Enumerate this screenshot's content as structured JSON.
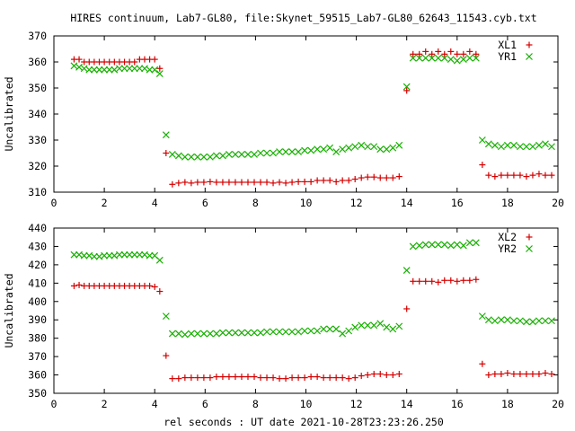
{
  "chart_data": {
    "title": "HIRES continuum, Lab7-GL80, file:Skynet_59515_Lab7-GL80_62643_11543.cyb.txt",
    "xlabel": "rel seconds : UT date 2021-10-28T23:23:26.250",
    "colors": {
      "red": "#d40000",
      "green": "#17b000"
    },
    "panels": [
      {
        "type": "scatter",
        "ylabel": "Uncalibrated",
        "xlim": [
          0,
          20
        ],
        "ylim": [
          310,
          370
        ],
        "xticks": [
          "0",
          "2",
          "4",
          "6",
          "8",
          "10",
          "12",
          "14",
          "16",
          "18",
          "20"
        ],
        "yticks": [
          "310",
          "320",
          "330",
          "340",
          "350",
          "360",
          "370"
        ],
        "legend_position": "top-right",
        "series": [
          {
            "name": "XL1",
            "marker": "plus",
            "color": "#d40000",
            "x": [
              0.8,
              1.0,
              1.2,
              1.4,
              1.6,
              1.8,
              2.0,
              2.2,
              2.4,
              2.6,
              2.8,
              3.0,
              3.2,
              3.4,
              3.6,
              3.8,
              4.0,
              4.2,
              4.45,
              4.7,
              4.95,
              5.2,
              5.45,
              5.7,
              5.95,
              6.2,
              6.45,
              6.7,
              6.95,
              7.2,
              7.45,
              7.7,
              7.95,
              8.2,
              8.45,
              8.7,
              8.95,
              9.2,
              9.45,
              9.7,
              9.95,
              10.2,
              10.45,
              10.7,
              10.95,
              11.2,
              11.45,
              11.7,
              11.95,
              12.2,
              12.45,
              12.7,
              12.95,
              13.2,
              13.45,
              13.7,
              14.0,
              14.25,
              14.5,
              14.75,
              15.0,
              15.25,
              15.5,
              15.75,
              16.0,
              16.25,
              16.5,
              16.75,
              17.0,
              17.25,
              17.5,
              17.75,
              18.0,
              18.25,
              18.5,
              18.75,
              19.0,
              19.25,
              19.5,
              19.75
            ],
            "y": [
              361,
              361,
              360,
              360,
              360,
              360,
              360,
              360,
              360,
              360,
              360,
              360,
              360,
              361,
              361,
              361,
              361,
              357.5,
              325,
              313,
              313.5,
              313.8,
              313.5,
              313.8,
              313.8,
              314,
              313.8,
              313.8,
              313.8,
              313.8,
              313.8,
              313.8,
              313.8,
              313.8,
              313.8,
              313.5,
              313.8,
              313.5,
              313.8,
              314,
              314,
              314,
              314.5,
              314.5,
              314.5,
              314,
              314.5,
              314.5,
              315,
              315.5,
              315.8,
              315.8,
              315.5,
              315.5,
              315.5,
              316,
              349,
              363,
              363,
              364,
              363,
              364,
              363,
              364,
              363,
              363,
              364,
              363,
              320.5,
              316.5,
              316,
              316.5,
              316.5,
              316.5,
              316.5,
              316,
              316.5,
              317,
              316.5,
              316.5
            ]
          },
          {
            "name": "YR1",
            "marker": "cross",
            "color": "#17b000",
            "x": [
              0.8,
              1.0,
              1.2,
              1.4,
              1.6,
              1.8,
              2.0,
              2.2,
              2.4,
              2.6,
              2.8,
              3.0,
              3.2,
              3.4,
              3.6,
              3.8,
              4.0,
              4.2,
              4.45,
              4.7,
              4.95,
              5.2,
              5.45,
              5.7,
              5.95,
              6.2,
              6.45,
              6.7,
              6.95,
              7.2,
              7.45,
              7.7,
              7.95,
              8.2,
              8.45,
              8.7,
              8.95,
              9.2,
              9.45,
              9.7,
              9.95,
              10.2,
              10.45,
              10.7,
              10.95,
              11.2,
              11.45,
              11.7,
              11.95,
              12.2,
              12.45,
              12.7,
              12.95,
              13.2,
              13.45,
              13.7,
              14.0,
              14.25,
              14.5,
              14.75,
              15.0,
              15.25,
              15.5,
              15.75,
              16.0,
              16.25,
              16.5,
              16.75,
              17.0,
              17.25,
              17.5,
              17.75,
              18.0,
              18.25,
              18.5,
              18.75,
              19.0,
              19.25,
              19.5,
              19.75
            ],
            "y": [
              358.5,
              358,
              357.5,
              357,
              357,
              357,
              357,
              357,
              357,
              357.5,
              357.5,
              357.5,
              357.5,
              357.5,
              357.5,
              357,
              357,
              355.5,
              332,
              324.5,
              324,
              323.5,
              323.5,
              323.5,
              323.5,
              323.5,
              324,
              324,
              324.5,
              324.5,
              324.5,
              324.5,
              324.5,
              325,
              325,
              325,
              325.5,
              325.5,
              325.5,
              325.5,
              326,
              326,
              326.5,
              326.5,
              327,
              325.5,
              326.5,
              327,
              327.5,
              328,
              327.5,
              327.5,
              326.5,
              326.5,
              327,
              328,
              350.5,
              361.5,
              361.5,
              361.5,
              361.5,
              361.5,
              361.5,
              361,
              360.5,
              361,
              361.5,
              361.5,
              330,
              328.5,
              328,
              327.5,
              328,
              328,
              327.5,
              327.5,
              327.5,
              328,
              328.5,
              327.5
            ]
          }
        ]
      },
      {
        "type": "scatter",
        "ylabel": "Uncalibrated",
        "xlim": [
          0,
          20
        ],
        "ylim": [
          350,
          440
        ],
        "xticks": [
          "0",
          "2",
          "4",
          "6",
          "8",
          "10",
          "12",
          "14",
          "16",
          "18",
          "20"
        ],
        "yticks": [
          "350",
          "360",
          "370",
          "380",
          "390",
          "400",
          "410",
          "420",
          "430",
          "440"
        ],
        "legend_position": "top-right",
        "series": [
          {
            "name": "XL2",
            "marker": "plus",
            "color": "#d40000",
            "x": [
              0.8,
              1.0,
              1.2,
              1.4,
              1.6,
              1.8,
              2.0,
              2.2,
              2.4,
              2.6,
              2.8,
              3.0,
              3.2,
              3.4,
              3.6,
              3.8,
              4.0,
              4.2,
              4.45,
              4.7,
              4.95,
              5.2,
              5.45,
              5.7,
              5.95,
              6.2,
              6.45,
              6.7,
              6.95,
              7.2,
              7.45,
              7.7,
              7.95,
              8.2,
              8.45,
              8.7,
              8.95,
              9.2,
              9.45,
              9.7,
              9.95,
              10.2,
              10.45,
              10.7,
              10.95,
              11.2,
              11.45,
              11.7,
              11.95,
              12.2,
              12.45,
              12.7,
              12.95,
              13.2,
              13.45,
              13.7,
              14.0,
              14.25,
              14.5,
              14.75,
              15.0,
              15.25,
              15.5,
              15.75,
              16.0,
              16.25,
              16.5,
              16.75,
              17.0,
              17.25,
              17.5,
              17.75,
              18.0,
              18.25,
              18.5,
              18.75,
              19.0,
              19.25,
              19.5,
              19.75
            ],
            "y": [
              408.5,
              409,
              408.5,
              408.5,
              408.5,
              408.5,
              408.5,
              408.5,
              408.5,
              408.5,
              408.5,
              408.5,
              408.5,
              408.5,
              408.5,
              408.5,
              408,
              405.5,
              370.5,
              358,
              358,
              358.5,
              358.5,
              358.5,
              358.5,
              358.5,
              359,
              359,
              359,
              359,
              359,
              359,
              359,
              358.5,
              358.5,
              358.5,
              358,
              358,
              358.5,
              358.5,
              358.5,
              359,
              359,
              358.5,
              358.5,
              358.5,
              358.5,
              358,
              358.5,
              359.5,
              360,
              360.5,
              360.5,
              360,
              360,
              360.5,
              396,
              411,
              411,
              411,
              411,
              410.5,
              411.5,
              411.5,
              411,
              411.5,
              411.5,
              412,
              366,
              360,
              360.5,
              360.5,
              361,
              360.5,
              360.5,
              360.5,
              360.5,
              360.5,
              361,
              360.5
            ]
          },
          {
            "name": "YR2",
            "marker": "cross",
            "color": "#17b000",
            "x": [
              0.8,
              1.0,
              1.2,
              1.4,
              1.6,
              1.8,
              2.0,
              2.2,
              2.4,
              2.6,
              2.8,
              3.0,
              3.2,
              3.4,
              3.6,
              3.8,
              4.0,
              4.2,
              4.45,
              4.7,
              4.95,
              5.2,
              5.45,
              5.7,
              5.95,
              6.2,
              6.45,
              6.7,
              6.95,
              7.2,
              7.45,
              7.7,
              7.95,
              8.2,
              8.45,
              8.7,
              8.95,
              9.2,
              9.45,
              9.7,
              9.95,
              10.2,
              10.45,
              10.7,
              10.95,
              11.2,
              11.45,
              11.7,
              11.95,
              12.2,
              12.45,
              12.7,
              12.95,
              13.2,
              13.45,
              13.7,
              14.0,
              14.25,
              14.5,
              14.75,
              15.0,
              15.25,
              15.5,
              15.75,
              16.0,
              16.25,
              16.5,
              16.75,
              17.0,
              17.25,
              17.5,
              17.75,
              18.0,
              18.25,
              18.5,
              18.75,
              19.0,
              19.25,
              19.5,
              19.75
            ],
            "y": [
              425.5,
              425.5,
              425,
              425,
              424.5,
              424.5,
              425,
              425,
              425,
              425.5,
              425.5,
              425.5,
              425.5,
              425.5,
              425.5,
              425,
              425,
              422.5,
              392,
              382.5,
              382.5,
              382,
              382.5,
              382.5,
              382.5,
              382.5,
              382.5,
              383,
              383,
              383,
              383,
              383,
              383,
              383,
              383.5,
              383.5,
              383.5,
              383.5,
              383.5,
              383.5,
              384,
              384,
              384,
              385,
              385,
              385,
              382.5,
              384,
              386,
              387,
              387,
              387,
              388,
              386,
              385,
              386.5,
              417,
              430,
              430.5,
              431,
              431,
              431,
              431,
              430.5,
              431,
              430.5,
              432,
              432,
              392,
              390,
              389.5,
              390,
              390,
              389.5,
              389.5,
              389,
              389,
              389.5,
              389.5,
              389.5
            ]
          }
        ]
      }
    ]
  }
}
